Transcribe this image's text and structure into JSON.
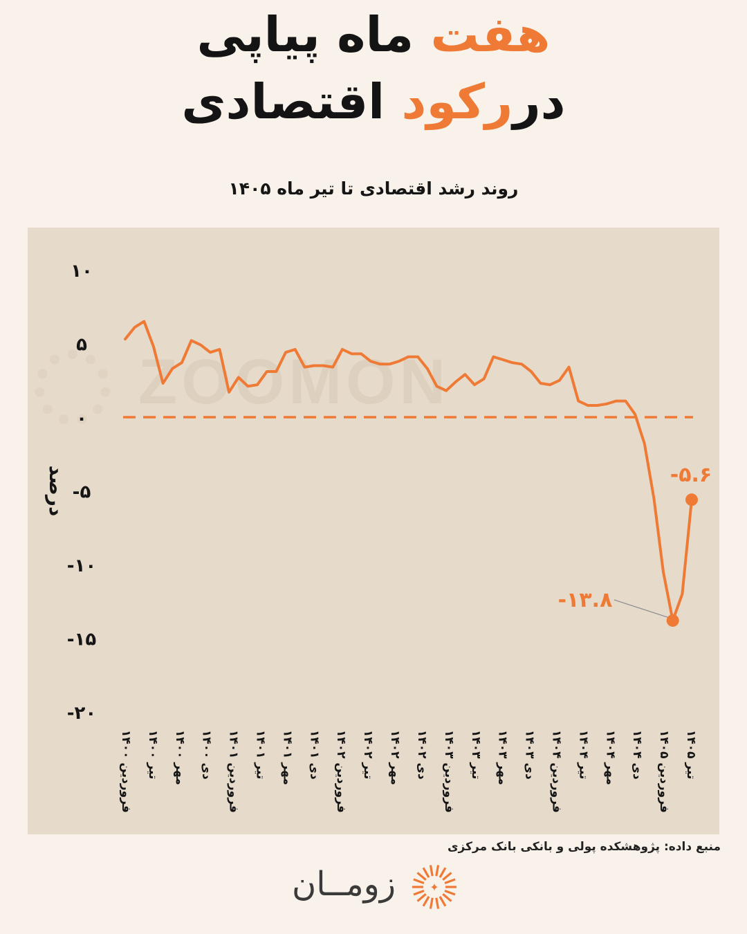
{
  "header": {
    "line1_accent": "هفت",
    "line1_rest": "ماه پیاپی",
    "line2_pre": "در",
    "line2_accent": "رکود",
    "line2_post": "اقتصادی"
  },
  "subtitle": "روند رشد اقتصادی تا تیر ماه ۱۴۰۵",
  "source": "منبع داده: پژوهشکده پولی و بانکی بانک مرکزی",
  "brand": {
    "name": "زومــان",
    "watermark": "ZOOMON",
    "icon": "sunburst-logo-icon"
  },
  "colors": {
    "accent": "#ee7a35",
    "panel": "#e6dacb",
    "background": "#f8f2ea",
    "text": "#141414"
  },
  "chart_data": {
    "type": "line",
    "ylabel": "درصد",
    "ylim": [
      -20,
      10
    ],
    "yticks": [
      10,
      5,
      0,
      -5,
      -10,
      -15,
      -20
    ],
    "ytick_labels": [
      "۱۰",
      "۵",
      "۰",
      "-۵",
      "-۱۰",
      "-۱۵",
      "-۲۰"
    ],
    "x_tick_labels": [
      "فروردین ۱۴۰۰",
      "تیر ۱۴۰۰",
      "مهر ۱۴۰۰",
      "دی ۱۴۰۰",
      "فروردین ۱۴۰۱",
      "تیر ۱۴۰۱",
      "مهر ۱۴۰۱",
      "دی ۱۴۰۱",
      "فروردین ۱۴۰۲",
      "تیر ۱۴۰۲",
      "مهر ۱۴۰۲",
      "دی ۱۴۰۲",
      "فروردین ۱۴۰۳",
      "تیر ۱۴۰۳",
      "مهر ۱۴۰۳",
      "دی ۱۴۰۳",
      "فروردین ۱۴۰۴",
      "تیر ۱۴۰۴",
      "مهر ۱۴۰۴",
      "دی ۱۴۰۴",
      "فروردین ۱۴۰۵",
      "تیر ۱۴۰۵"
    ],
    "series": [
      {
        "values": [
          5.3,
          6.1,
          6.5,
          4.8,
          2.3,
          3.3,
          3.7,
          5.2,
          4.9,
          4.4,
          4.6,
          1.7,
          2.7,
          2.1,
          2.2,
          3.1,
          3.1,
          4.4,
          4.6,
          3.4,
          3.5,
          3.5,
          3.4,
          4.6,
          4.3,
          4.3,
          3.8,
          3.6,
          3.6,
          3.8,
          4.1,
          4.1,
          3.3,
          2.1,
          1.8,
          2.4,
          2.9,
          2.2,
          2.6,
          4.1,
          3.9,
          3.7,
          3.6,
          3.1,
          2.3,
          2.2,
          2.5,
          3.4,
          1.1,
          0.8,
          0.8,
          0.9,
          1.1,
          1.1,
          0.2,
          -1.8,
          -5.5,
          -10.5,
          -13.8,
          -12.0,
          -5.6
        ]
      }
    ],
    "reference_line": {
      "value": 0,
      "style": "dashed"
    },
    "annotations": [
      {
        "label": "-۱۳.۸",
        "value": -13.8
      },
      {
        "label": "-۵.۶",
        "value": -5.6
      }
    ],
    "grid": false,
    "legend": "none"
  }
}
